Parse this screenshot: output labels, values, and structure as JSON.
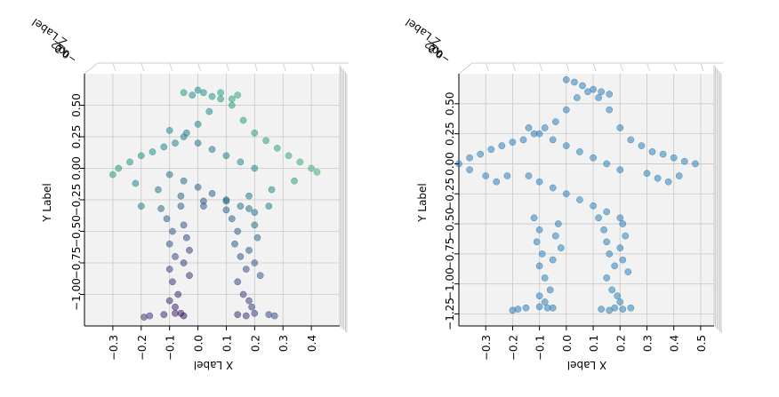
{
  "chart_data": [
    {
      "type": "scatter",
      "projection": "3d",
      "title": "",
      "xlabel": "X Label",
      "ylabel": "Y Label",
      "zlabel": "Z Label",
      "x_ticks": [
        -0.3,
        -0.2,
        -0.1,
        0.0,
        0.1,
        0.2,
        0.3,
        0.4
      ],
      "x_tick_labels": [
        "−0.3",
        "−0.2",
        "−0.1",
        "0.0",
        "0.1",
        "0.2",
        "0.3",
        "0.4"
      ],
      "y_ticks": [
        0.5,
        0.25,
        0.0,
        -0.25,
        -0.5,
        -0.75,
        -1.0
      ],
      "y_tick_labels": [
        "0.50",
        "0.25",
        "0.00",
        "−0.25",
        "−0.50",
        "−0.75",
        "−1.00"
      ],
      "z_tick_labels": [
        "0.2",
        "0.0",
        "−0.2"
      ],
      "xlim": [
        -0.4,
        0.5
      ],
      "ylim": [
        -1.25,
        0.75
      ],
      "grid": true,
      "colormap": "viridis",
      "marker_alpha": 0.55,
      "series": [
        {
          "points_x": [
            -0.28,
            -0.24,
            -0.2,
            -0.16,
            -0.12,
            -0.08,
            -0.04,
            0.0,
            0.04,
            0.08,
            0.12,
            0.16,
            0.2,
            0.24,
            0.28,
            0.32,
            0.36,
            0.4,
            -0.3,
            -0.22,
            -0.14,
            -0.06,
            0.02,
            0.1,
            0.18,
            0.26,
            0.34,
            0.42,
            -0.2,
            -0.13,
            -0.06,
            0.02,
            0.1,
            0.18,
            0.25,
            -0.05,
            -0.02,
            0.0,
            0.02,
            0.05,
            0.08,
            0.12,
            0.14,
            -0.1,
            -0.05,
            0.0,
            0.05,
            0.1,
            0.15,
            0.2,
            -0.1,
            -0.05,
            0.0,
            0.05,
            0.1,
            0.15,
            0.2,
            -0.11,
            -0.09,
            -0.1,
            -0.08,
            -0.1,
            -0.09,
            -0.07,
            -0.1,
            -0.08,
            -0.06,
            -0.05,
            -0.04,
            -0.03,
            -0.05,
            -0.03,
            0.12,
            0.14,
            0.13,
            0.15,
            0.17,
            0.14,
            0.16,
            0.18,
            0.19,
            0.2,
            0.21,
            0.18,
            0.2,
            0.22,
            -0.19,
            -0.17,
            -0.12,
            -0.08,
            -0.05,
            0.14,
            0.17,
            0.2,
            0.25,
            0.27
          ],
          "points_y": [
            0.0,
            0.05,
            0.1,
            0.13,
            0.17,
            0.2,
            0.28,
            0.35,
            0.45,
            0.55,
            0.5,
            0.38,
            0.28,
            0.22,
            0.16,
            0.1,
            0.05,
            0.0,
            -0.05,
            -0.12,
            -0.17,
            -0.22,
            -0.26,
            -0.26,
            -0.22,
            -0.17,
            -0.1,
            -0.03,
            -0.3,
            -0.32,
            -0.3,
            -0.3,
            -0.33,
            -0.32,
            -0.3,
            0.6,
            0.58,
            0.62,
            0.6,
            0.57,
            0.6,
            0.55,
            0.58,
            0.3,
            0.25,
            0.2,
            0.15,
            0.1,
            0.05,
            0.0,
            -0.05,
            -0.1,
            -0.15,
            -0.2,
            -0.25,
            -0.3,
            -0.35,
            -0.4,
            -0.5,
            -0.6,
            -0.7,
            -0.8,
            -0.9,
            -1.0,
            -1.05,
            -1.1,
            -1.15,
            -0.45,
            -0.55,
            -0.65,
            -0.75,
            -0.85,
            -0.4,
            -0.5,
            -0.6,
            -0.7,
            -0.8,
            -0.9,
            -1.0,
            -1.05,
            -1.1,
            -0.45,
            -0.55,
            -0.65,
            -0.75,
            -0.85,
            -1.18,
            -1.17,
            -1.16,
            -1.15,
            -1.17,
            -1.16,
            -1.17,
            -1.15,
            -1.16,
            -1.17
          ]
        }
      ]
    },
    {
      "type": "scatter",
      "projection": "3d",
      "title": "",
      "xlabel": "X Label",
      "ylabel": "Y Label",
      "zlabel": "Z Label",
      "x_ticks": [
        -0.3,
        -0.2,
        -0.1,
        0.0,
        0.1,
        0.2,
        0.3,
        0.4,
        0.5
      ],
      "x_tick_labels": [
        "−0.3",
        "−0.2",
        "−0.1",
        "0.0",
        "0.1",
        "0.2",
        "0.3",
        "0.4",
        "0.5"
      ],
      "y_ticks": [
        0.5,
        0.25,
        0.0,
        -0.25,
        -0.5,
        -0.75,
        -1.0,
        -1.25
      ],
      "y_tick_labels": [
        "0.50",
        "0.25",
        "0.00",
        "−0.25",
        "−0.50",
        "−0.75",
        "−1.00",
        "−1.25"
      ],
      "z_tick_labels": [
        "0.2",
        "0.0",
        "−0.2"
      ],
      "xlim": [
        -0.4,
        0.55
      ],
      "ylim": [
        -1.35,
        0.75
      ],
      "grid": true,
      "color": "#1f77b4",
      "marker_alpha": 0.5,
      "series": [
        {
          "points_x": [
            -0.4,
            -0.36,
            -0.32,
            -0.28,
            -0.24,
            -0.2,
            -0.16,
            -0.12,
            -0.08,
            -0.04,
            0.0,
            0.04,
            0.08,
            0.12,
            0.16,
            0.2,
            0.24,
            0.28,
            0.32,
            0.36,
            0.4,
            0.44,
            0.48,
            -0.36,
            -0.3,
            -0.26,
            -0.22,
            0.3,
            0.34,
            0.38,
            0.42,
            0.0,
            0.03,
            0.06,
            0.1,
            0.13,
            0.16,
            -0.14,
            -0.1,
            -0.05,
            0.0,
            0.05,
            0.1,
            0.15,
            0.2,
            -0.14,
            -0.1,
            -0.05,
            0.0,
            0.05,
            0.1,
            0.15,
            0.2,
            -0.12,
            -0.1,
            -0.11,
            -0.09,
            -0.1,
            -0.08,
            -0.06,
            -0.1,
            -0.08,
            -0.05,
            -0.03,
            -0.04,
            -0.02,
            -0.05,
            0.12,
            0.14,
            0.15,
            0.16,
            0.18,
            0.15,
            0.17,
            0.19,
            0.2,
            0.21,
            0.22,
            0.2,
            0.21,
            0.23,
            -0.2,
            -0.18,
            -0.15,
            -0.1,
            -0.07,
            0.13,
            0.16,
            0.18,
            0.21,
            0.24
          ],
          "points_y": [
            0.0,
            0.05,
            0.08,
            0.12,
            0.15,
            0.18,
            0.2,
            0.25,
            0.3,
            0.35,
            0.45,
            0.55,
            0.6,
            0.55,
            0.45,
            0.3,
            0.2,
            0.15,
            0.1,
            0.08,
            0.05,
            0.02,
            0.0,
            -0.05,
            -0.1,
            -0.15,
            -0.1,
            -0.08,
            -0.12,
            -0.15,
            -0.1,
            0.7,
            0.68,
            0.65,
            0.62,
            0.6,
            0.58,
            0.3,
            0.25,
            0.2,
            0.15,
            0.1,
            0.05,
            0.0,
            -0.05,
            -0.1,
            -0.15,
            -0.2,
            -0.25,
            -0.3,
            -0.35,
            -0.4,
            -0.45,
            -0.45,
            -0.55,
            -0.65,
            -0.75,
            -0.85,
            -0.95,
            -1.05,
            -1.1,
            -1.15,
            -1.2,
            -0.5,
            -0.6,
            -0.7,
            -0.8,
            -0.45,
            -0.55,
            -0.65,
            -0.75,
            -0.85,
            -0.95,
            -1.05,
            -1.1,
            -1.15,
            -0.5,
            -0.6,
            -0.7,
            -0.8,
            -0.9,
            -1.22,
            -1.21,
            -1.2,
            -1.19,
            -1.2,
            -1.21,
            -1.22,
            -1.2,
            -1.21,
            -1.2
          ]
        }
      ]
    }
  ]
}
